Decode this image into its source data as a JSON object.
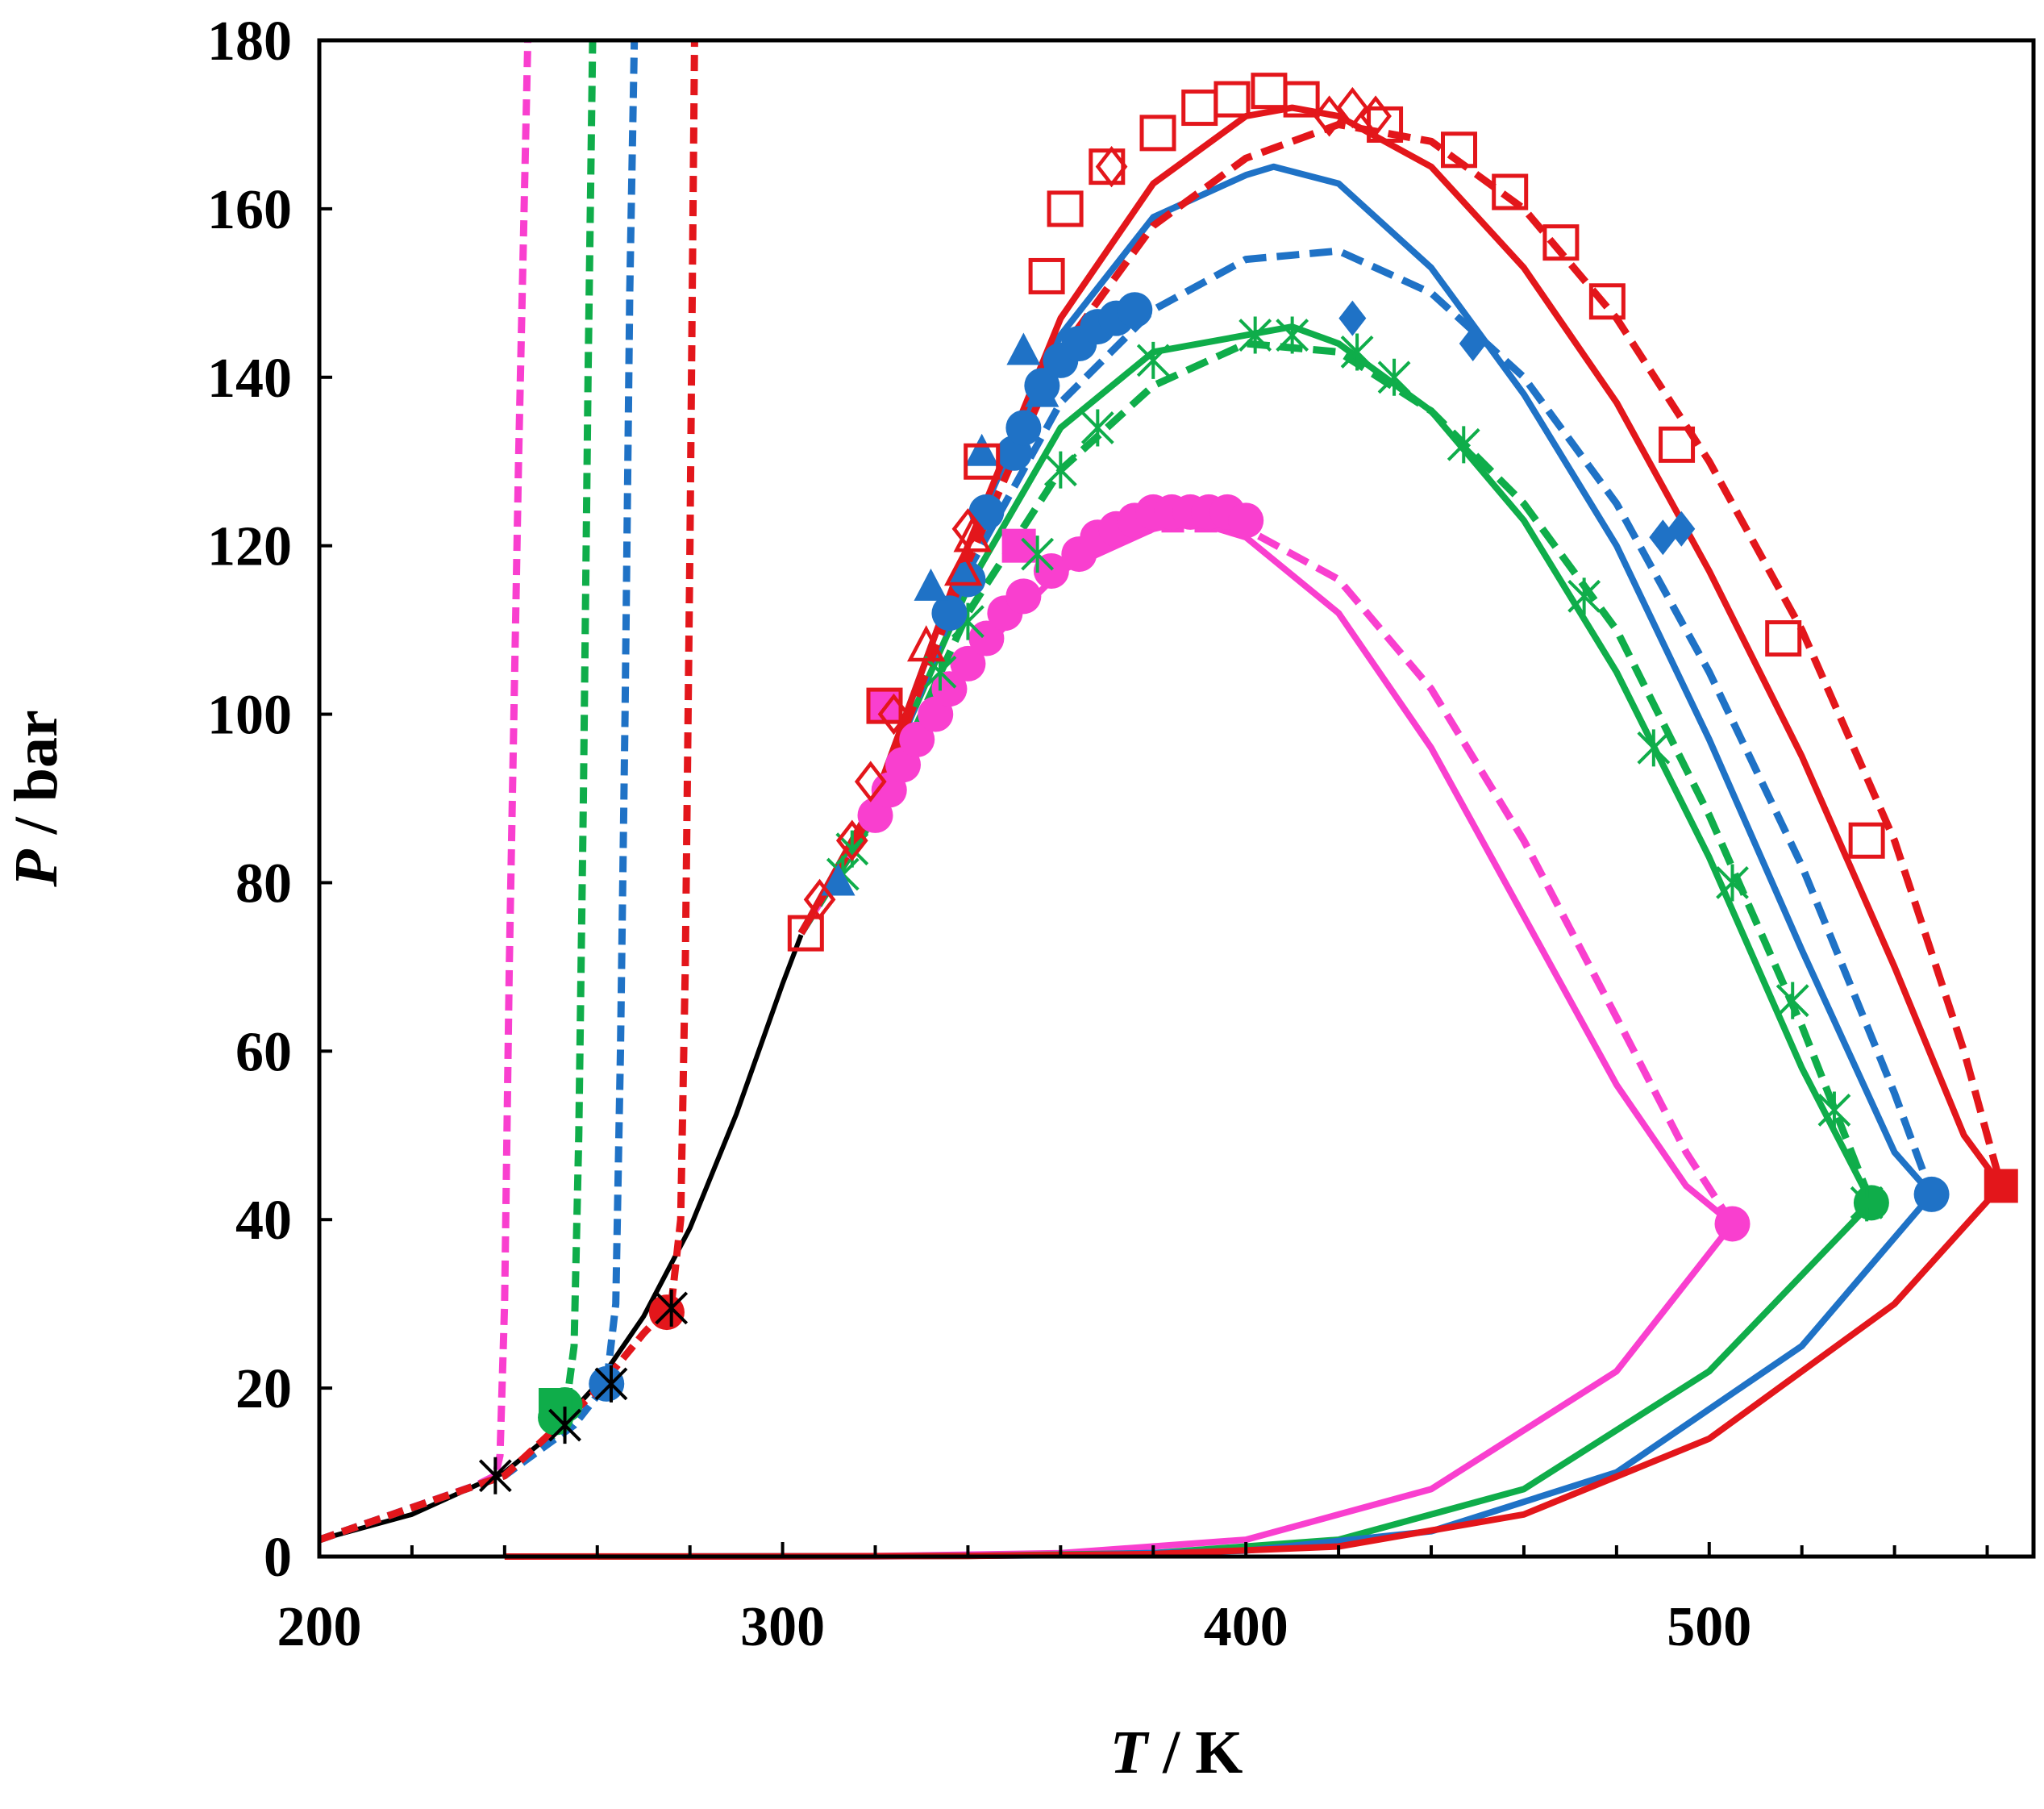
{
  "chart_data": {
    "type": "scatter",
    "xlabel": {
      "symbol": "T",
      "unit": " / K"
    },
    "ylabel": {
      "symbol": "P",
      "unit": " / bar"
    },
    "xlim": [
      200,
      570
    ],
    "ylim": [
      0,
      180
    ],
    "xticks": [
      200,
      300,
      400,
      500
    ],
    "yticks": [
      0,
      20,
      40,
      60,
      80,
      100,
      120,
      140,
      160,
      180
    ],
    "x_minor_step": 20,
    "grid": false,
    "colors": {
      "red": "#e3161b",
      "blue": "#1f72c6",
      "green": "#0fad4a",
      "magenta": "#f93fcf",
      "black": "#000000"
    },
    "pure_vapor_pressure": {
      "name": "pure component (black)",
      "color": "#000000",
      "x": [
        200,
        220,
        240,
        250,
        260,
        270,
        280,
        290,
        300,
        304
      ],
      "y": [
        2.0,
        5.0,
        10.0,
        14.5,
        20.5,
        28.5,
        39.0,
        52.5,
        68.0,
        73.8
      ]
    },
    "series": [
      {
        "name": "red",
        "color": "#e3161b",
        "model_solid": {
          "x": [
            304,
            320,
            340,
            360,
            380,
            400,
            410,
            420,
            440,
            460,
            480,
            500,
            520,
            540,
            555,
            563,
            563,
            540,
            500,
            460,
            420,
            380,
            340,
            300,
            260,
            240
          ],
          "y": [
            74,
            90,
            120,
            147,
            163,
            171,
            172,
            171,
            165,
            153,
            137,
            117,
            95,
            70,
            50,
            44,
            44,
            30,
            14,
            5,
            1.2,
            0.3,
            0.08,
            0.02,
            0.005,
            0.002
          ]
        },
        "model_dashed": {
          "x": [
            304,
            320,
            340,
            360,
            380,
            400,
            420,
            440,
            460,
            480,
            500,
            520,
            540,
            555,
            563
          ],
          "y": [
            74,
            89,
            118,
            143,
            158,
            166,
            170,
            168,
            160,
            147,
            130,
            110,
            85,
            60,
            44
          ]
        },
        "slle_dashed": {
          "x": [
            200,
            240,
            260,
            270,
            276,
            278,
            279,
            280,
            281
          ],
          "y": [
            2.0,
            9.6,
            19.8,
            26.5,
            30,
            40,
            70,
            120,
            180
          ]
        },
        "points_open_square": {
          "x": [
            305,
            322,
            343,
            357,
            361,
            370,
            381,
            390,
            397,
            405,
            412,
            430,
            446,
            457,
            468,
            478,
            493,
            516,
            534
          ],
          "y": [
            74,
            101,
            130,
            152,
            160,
            165,
            169,
            172,
            173,
            174,
            173,
            170,
            167,
            162,
            156,
            149,
            132,
            109,
            85
          ]
        },
        "points_open_diamond": {
          "x": [
            308,
            315,
            319,
            324,
            340,
            371,
            418,
            423,
            428
          ],
          "y": [
            78,
            85,
            92,
            100,
            122,
            165,
            171,
            172,
            171
          ]
        },
        "points_open_triangle": {
          "x": [
            331,
            339,
            341
          ],
          "y": [
            108,
            117,
            121
          ]
        },
        "points_filled_square": {
          "x": [
            563
          ],
          "y": [
            44
          ]
        },
        "points_filled_circle": {
          "x": [
            275
          ],
          "y": [
            29
          ]
        }
      },
      {
        "name": "blue",
        "color": "#1f72c6",
        "model_solid": {
          "x": [
            304,
            320,
            340,
            360,
            380,
            400,
            406,
            420,
            440,
            460,
            480,
            500,
            520,
            540,
            548,
            548,
            520,
            480,
            440,
            400,
            360,
            320,
            280
          ],
          "y": [
            74,
            90,
            120,
            145,
            159,
            164,
            165,
            163,
            153,
            138,
            120,
            97,
            72,
            48,
            43,
            43,
            25,
            10,
            3,
            0.7,
            0.15,
            0.03,
            0.005
          ]
        },
        "model_dashed": {
          "x": [
            304,
            320,
            340,
            360,
            380,
            400,
            420,
            440,
            460,
            480,
            500,
            520,
            540,
            548
          ],
          "y": [
            74,
            89,
            117,
            137,
            148,
            154,
            155,
            150,
            140,
            125,
            105,
            82,
            55,
            43
          ]
        },
        "slle_dashed": {
          "x": [
            200,
            240,
            255,
            262,
            264,
            265,
            266,
            267,
            268
          ],
          "y": [
            2.0,
            9.6,
            15.6,
            20.5,
            30,
            60,
            100,
            150,
            180
          ]
        },
        "points_filled_circle": {
          "x": [
            336,
            340,
            344,
            350,
            352,
            356,
            360,
            364,
            368,
            372,
            376,
            262,
            548
          ],
          "y": [
            112,
            116,
            124,
            131,
            134,
            139,
            142,
            144,
            146,
            147,
            148,
            20.5,
            43
          ]
        },
        "points_filled_triangle": {
          "x": [
            332,
            343,
            352,
            356,
            312
          ],
          "y": [
            115,
            131,
            143,
            138,
            80
          ]
        },
        "points_filled_diamond": {
          "x": [
            423,
            449,
            490,
            494
          ],
          "y": [
            147,
            144,
            121,
            122
          ]
        }
      },
      {
        "name": "green",
        "color": "#0fad4a",
        "model_solid": {
          "x": [
            304,
            320,
            340,
            360,
            380,
            400,
            410,
            420,
            440,
            460,
            480,
            500,
            520,
            535,
            535,
            500,
            460,
            420,
            380,
            340,
            300,
            260
          ],
          "y": [
            74,
            90,
            115,
            134,
            143,
            145,
            146,
            144,
            136,
            123,
            105,
            83,
            58,
            42,
            42,
            22,
            8,
            2,
            0.4,
            0.08,
            0.015,
            0.003
          ]
        },
        "model_dashed": {
          "x": [
            304,
            320,
            340,
            360,
            380,
            400,
            420,
            440,
            460,
            480,
            500,
            520,
            535
          ],
          "y": [
            74,
            88,
            112,
            129,
            139,
            144,
            143,
            136,
            125,
            110,
            88,
            63,
            42
          ]
        },
        "slle_dashed": {
          "x": [
            200,
            240,
            250,
            253,
            255,
            256,
            257,
            258,
            259
          ],
          "y": [
            2.0,
            9.6,
            14,
            16.6,
            25,
            50,
            90,
            140,
            180
          ]
        },
        "points_asterisk": {
          "x": [
            313,
            315,
            334,
            340,
            355,
            360,
            368,
            380,
            402,
            410,
            424,
            432,
            447,
            473,
            488,
            505,
            518,
            527,
            534
          ],
          "y": [
            81,
            84,
            105,
            111,
            119,
            129,
            134,
            142,
            145,
            145,
            143,
            140,
            132,
            114,
            96,
            80,
            66,
            53,
            42
          ]
        },
        "points_filled_circle": {
          "x": [
            251,
            253,
            535
          ],
          "y": [
            16.5,
            18,
            42
          ]
        },
        "points_filled_square": {
          "x": [
            251
          ],
          "y": [
            18
          ]
        }
      },
      {
        "name": "magenta",
        "color": "#f93fcf",
        "model_solid": {
          "x": [
            304,
            320,
            340,
            360,
            380,
            388,
            400,
            420,
            440,
            460,
            480,
            495,
            505,
            505,
            480,
            440,
            400,
            360,
            320,
            280
          ],
          "y": [
            74,
            88,
            106,
            117,
            122,
            123,
            121,
            112,
            96,
            76,
            56,
            44,
            39.5,
            39.5,
            22,
            8,
            2,
            0.4,
            0.06,
            0.01
          ]
        },
        "model_dashed": {
          "x": [
            304,
            320,
            340,
            360,
            380,
            400,
            420,
            440,
            460,
            480,
            495,
            505
          ],
          "y": [
            74,
            88,
            107,
            118,
            122,
            122,
            116,
            103,
            85,
            64,
            48,
            39.5
          ]
        },
        "slle_dashed": {
          "x": [
            200,
            234,
            238,
            239,
            240,
            241,
            243,
            245
          ],
          "y": [
            2.0,
            8.5,
            9.6,
            12,
            30,
            70,
            130,
            180
          ]
        },
        "points_filled_circle": {
          "x": [
            320,
            323,
            326,
            329,
            333,
            336,
            340,
            344,
            348,
            352,
            358,
            364,
            368,
            372,
            376,
            380,
            384,
            388,
            392,
            396,
            400,
            505
          ],
          "y": [
            88,
            91,
            94,
            97,
            100,
            103,
            106,
            109,
            112,
            114,
            117,
            119,
            121,
            122,
            123,
            124,
            124,
            124,
            124,
            124,
            123,
            39.5
          ]
        },
        "points_filled_square": {
          "x": [
            322,
            351
          ],
          "y": [
            101,
            120
          ]
        }
      }
    ],
    "critical_points_black_asterisk": {
      "x": [
        238,
        253,
        263,
        276
      ],
      "y": [
        9.6,
        15.6,
        20.5,
        29.5
      ]
    }
  }
}
